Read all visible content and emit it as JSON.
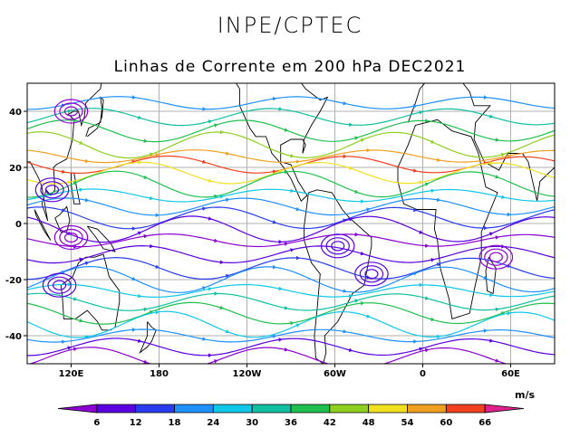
{
  "header": "INPE/CPTEC",
  "title": "Linhas de Corrente em 200 hPa DEC2021",
  "map": {
    "lon_range": [
      90,
      450
    ],
    "lat_range": [
      -50,
      50
    ],
    "x_ticks": [
      "120E",
      "180",
      "120W",
      "60W",
      "0",
      "60E"
    ],
    "x_tick_lons": [
      120,
      180,
      240,
      300,
      360,
      420
    ],
    "y_ticks": [
      "40",
      "20",
      "0",
      "-20",
      "-40"
    ],
    "y_tick_lats": [
      40,
      20,
      0,
      -20,
      -40
    ],
    "grid": true
  },
  "colorbar": {
    "units": "m/s",
    "labels": [
      "6",
      "12",
      "18",
      "24",
      "30",
      "36",
      "42",
      "48",
      "54",
      "60",
      "66"
    ],
    "colors": [
      "#8c00d4",
      "#5a00e0",
      "#2a3cf0",
      "#1e90ff",
      "#10c8e8",
      "#10c0a0",
      "#20c050",
      "#8ed020",
      "#f0e020",
      "#f0a020",
      "#f04020",
      "#e0208c"
    ]
  },
  "streamlines": [
    {
      "lat": 43,
      "color": "#1e90ff"
    },
    {
      "lat": 38,
      "color": "#10c0a0"
    },
    {
      "lat": 33,
      "color": "#20c050"
    },
    {
      "lat": 28,
      "color": "#8ed020"
    },
    {
      "lat": 24,
      "color": "#f0a020"
    },
    {
      "lat": 21,
      "color": "#f04020"
    },
    {
      "lat": 18,
      "color": "#f0e020"
    },
    {
      "lat": 14,
      "color": "#20c050"
    },
    {
      "lat": 10,
      "color": "#10c8e8"
    },
    {
      "lat": 6,
      "color": "#1e90ff"
    },
    {
      "lat": 2,
      "color": "#2a3cf0"
    },
    {
      "lat": -2,
      "color": "#5a00e0"
    },
    {
      "lat": -6,
      "color": "#8c00d4"
    },
    {
      "lat": -11,
      "color": "#5a00e0"
    },
    {
      "lat": -16,
      "color": "#2a3cf0"
    },
    {
      "lat": -20,
      "color": "#1e90ff"
    },
    {
      "lat": -24,
      "color": "#10c8e8"
    },
    {
      "lat": -28,
      "color": "#10c0a0"
    },
    {
      "lat": -32,
      "color": "#20c050"
    },
    {
      "lat": -36,
      "color": "#10c8e8"
    },
    {
      "lat": -40,
      "color": "#1e90ff"
    },
    {
      "lat": -44,
      "color": "#5a00e0"
    },
    {
      "lat": -48,
      "color": "#8c00d4"
    }
  ]
}
